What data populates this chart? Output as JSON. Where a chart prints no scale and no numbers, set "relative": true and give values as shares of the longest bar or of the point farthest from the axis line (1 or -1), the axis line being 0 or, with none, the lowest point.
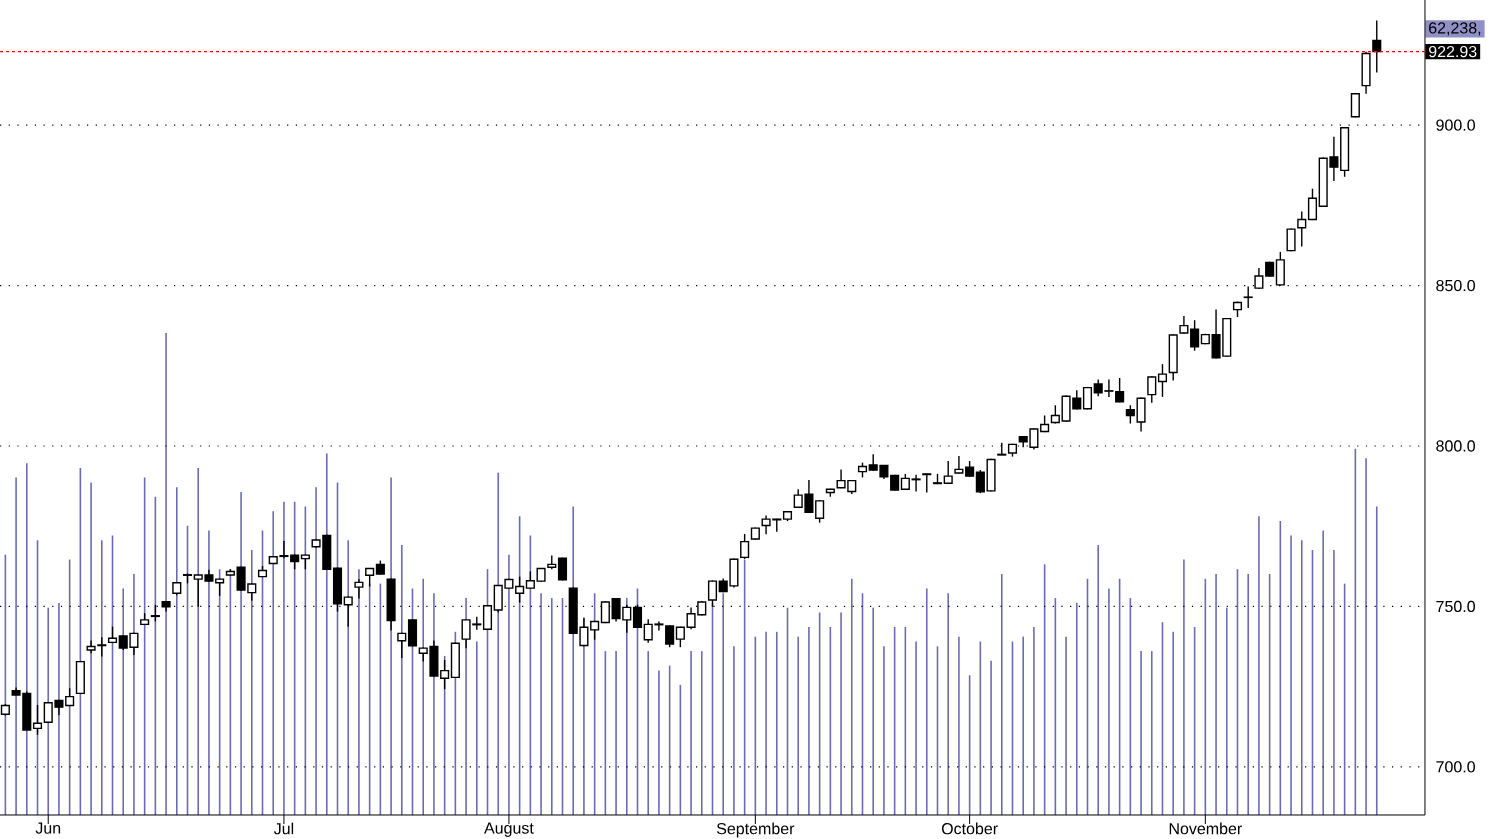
{
  "chart_data": [
    {
      "type": "candlestick",
      "categories": [
        null,
        null,
        null,
        null,
        "Jun",
        null,
        null,
        null,
        null,
        null,
        null,
        null,
        null,
        null,
        null,
        null,
        null,
        null,
        null,
        null,
        null,
        null,
        null,
        null,
        null,
        null,
        "Jul",
        null,
        null,
        null,
        null,
        null,
        null,
        null,
        null,
        null,
        null,
        null,
        null,
        null,
        null,
        null,
        null,
        null,
        null,
        null,
        null,
        "August",
        null,
        null,
        null,
        null,
        null,
        null,
        null,
        null,
        null,
        null,
        null,
        null,
        null,
        null,
        null,
        null,
        null,
        null,
        null,
        null,
        null,
        null,
        "September",
        null,
        null,
        null,
        null,
        null,
        null,
        null,
        null,
        null,
        null,
        null,
        null,
        null,
        null,
        null,
        null,
        null,
        null,
        null,
        "October",
        null,
        null,
        null,
        null,
        null,
        null,
        null,
        null,
        null,
        null,
        null,
        null,
        null,
        null,
        null,
        null,
        null,
        null,
        null,
        null,
        null,
        "November",
        null,
        null,
        null,
        null,
        null,
        null,
        null,
        null,
        null,
        null,
        null,
        null,
        null,
        null,
        null,
        null,
        null,
        null,
        null,
        null
      ],
      "ohlc": [
        [
          716.4,
          719.5,
          716.0,
          719.1
        ],
        [
          723.7,
          724.7,
          722.4,
          722.4
        ],
        [
          722.9,
          723.5,
          711.5,
          711.5
        ],
        [
          712.0,
          719.3,
          710.0,
          713.6
        ],
        [
          713.9,
          720.2,
          713.7,
          720.0
        ],
        [
          720.7,
          720.9,
          716.2,
          718.6
        ],
        [
          719.1,
          724.5,
          718.9,
          721.9
        ],
        [
          722.9,
          733.0,
          722.7,
          732.8
        ],
        [
          736.4,
          739.4,
          735.4,
          737.5
        ],
        [
          737.8,
          740.4,
          734.4,
          738.0
        ],
        [
          738.8,
          743.7,
          738.6,
          740.1
        ],
        [
          740.8,
          741.0,
          736.4,
          737.0
        ],
        [
          737.3,
          741.8,
          734.9,
          741.6
        ],
        [
          744.4,
          747.9,
          744.2,
          745.8
        ],
        [
          746.9,
          750.5,
          745.3,
          747.1
        ],
        [
          751.5,
          751.7,
          748.4,
          749.9
        ],
        [
          754.1,
          757.6,
          753.5,
          757.4
        ],
        [
          759.7,
          760.3,
          757.2,
          759.9
        ],
        [
          758.5,
          759.9,
          749.9,
          759.8
        ],
        [
          759.8,
          761.4,
          757.6,
          757.9
        ],
        [
          757.4,
          758.7,
          753.3,
          758.5
        ],
        [
          759.8,
          761.6,
          759.6,
          760.9
        ],
        [
          762.2,
          762.4,
          754.9,
          755.1
        ],
        [
          754.3,
          757.2,
          751.8,
          757.0
        ],
        [
          759.3,
          762.6,
          759.1,
          761.2
        ],
        [
          763.4,
          765.7,
          763.2,
          765.5
        ],
        [
          765.6,
          770.4,
          765.0,
          765.8
        ],
        [
          766.0,
          766.2,
          761.6,
          764.0
        ],
        [
          764.9,
          766.2,
          761.6,
          766.0
        ],
        [
          768.6,
          770.9,
          768.4,
          770.7
        ],
        [
          772.1,
          772.3,
          761.4,
          761.6
        ],
        [
          761.9,
          762.1,
          748.4,
          750.8
        ],
        [
          750.5,
          753.1,
          743.7,
          752.9
        ],
        [
          756.0,
          758.5,
          752.5,
          757.5
        ],
        [
          759.7,
          762.0,
          756.2,
          761.8
        ],
        [
          763.1,
          764.3,
          759.9,
          760.1
        ],
        [
          758.5,
          758.7,
          742.5,
          745.6
        ],
        [
          739.3,
          741.8,
          733.9,
          741.6
        ],
        [
          745.8,
          746.0,
          737.5,
          737.7
        ],
        [
          735.4,
          737.2,
          732.8,
          737.0
        ],
        [
          737.5,
          739.4,
          728.1,
          728.3
        ],
        [
          727.6,
          733.3,
          724.2,
          730.0
        ],
        [
          727.9,
          738.7,
          727.7,
          738.5
        ],
        [
          739.8,
          746.0,
          737.0,
          745.8
        ],
        [
          744.3,
          746.8,
          742.7,
          744.5
        ],
        [
          742.9,
          750.4,
          742.7,
          750.2
        ],
        [
          748.9,
          756.7,
          748.1,
          756.5
        ],
        [
          755.7,
          758.6,
          755.5,
          758.4
        ],
        [
          754.1,
          759.3,
          751.2,
          756.2
        ],
        [
          755.7,
          760.9,
          755.5,
          758.0
        ],
        [
          757.9,
          762.0,
          757.7,
          761.8
        ],
        [
          762.2,
          765.9,
          761.6,
          763.1
        ],
        [
          765.0,
          765.2,
          758.1,
          758.3
        ],
        [
          755.7,
          755.9,
          741.4,
          741.6
        ],
        [
          737.8,
          746.3,
          737.6,
          743.5
        ],
        [
          742.7,
          745.5,
          739.6,
          745.3
        ],
        [
          745.0,
          751.6,
          744.8,
          751.4
        ],
        [
          752.4,
          752.6,
          745.3,
          746.2
        ],
        [
          745.8,
          750.5,
          741.8,
          749.7
        ],
        [
          749.7,
          750.5,
          743.3,
          743.5
        ],
        [
          739.6,
          746.0,
          738.7,
          744.4
        ],
        [
          744.3,
          745.3,
          742.5,
          744.5
        ],
        [
          743.9,
          744.1,
          737.3,
          738.3
        ],
        [
          739.8,
          743.7,
          737.3,
          743.5
        ],
        [
          743.5,
          749.7,
          742.9,
          747.7
        ],
        [
          747.4,
          751.6,
          747.2,
          751.4
        ],
        [
          752.0,
          758.1,
          749.9,
          757.9
        ],
        [
          757.9,
          758.7,
          754.4,
          754.6
        ],
        [
          756.4,
          764.9,
          755.9,
          764.7
        ],
        [
          765.3,
          772.6,
          764.8,
          770.2
        ],
        [
          771.0,
          774.6,
          770.8,
          774.4
        ],
        [
          775.2,
          778.3,
          772.5,
          777.2
        ],
        [
          777.0,
          777.3,
          773.3,
          777.2
        ],
        [
          777.2,
          779.7,
          776.6,
          779.5
        ],
        [
          780.9,
          786.5,
          780.7,
          784.7
        ],
        [
          785.0,
          789.4,
          779.1,
          779.3
        ],
        [
          777.5,
          783.1,
          776.1,
          782.9
        ],
        [
          785.5,
          786.7,
          784.2,
          786.5
        ],
        [
          787.0,
          792.7,
          786.8,
          789.2
        ],
        [
          785.8,
          789.4,
          785.0,
          789.2
        ],
        [
          792.0,
          794.8,
          790.2,
          793.6
        ],
        [
          794.1,
          797.4,
          792.3,
          792.5
        ],
        [
          793.9,
          794.1,
          789.7,
          790.4
        ],
        [
          790.8,
          791.0,
          786.1,
          786.3
        ],
        [
          786.5,
          791.3,
          786.3,
          789.9
        ],
        [
          789.5,
          791.0,
          785.8,
          789.7
        ],
        [
          791.1,
          791.4,
          785.5,
          791.3
        ],
        [
          788.5,
          791.3,
          788.1,
          788.3
        ],
        [
          788.4,
          795.3,
          788.2,
          790.6
        ],
        [
          791.6,
          796.9,
          791.4,
          792.7
        ],
        [
          793.4,
          795.3,
          790.4,
          790.6
        ],
        [
          791.8,
          792.5,
          785.3,
          785.7
        ],
        [
          786.0,
          796.0,
          785.8,
          795.8
        ],
        [
          797.4,
          801.0,
          797.1,
          797.2
        ],
        [
          797.8,
          800.7,
          796.7,
          800.5
        ],
        [
          802.9,
          803.1,
          799.6,
          801.3
        ],
        [
          799.6,
          805.5,
          798.9,
          805.3
        ],
        [
          804.5,
          809.5,
          804.3,
          806.7
        ],
        [
          807.3,
          812.7,
          807.0,
          809.5
        ],
        [
          807.8,
          815.7,
          807.6,
          815.5
        ],
        [
          814.9,
          817.4,
          811.4,
          811.6
        ],
        [
          811.6,
          818.4,
          811.4,
          818.2
        ],
        [
          819.3,
          820.7,
          815.5,
          816.6
        ],
        [
          817.1,
          820.7,
          815.3,
          817.2
        ],
        [
          816.9,
          821.2,
          813.6,
          813.8
        ],
        [
          811.3,
          812.7,
          807.0,
          809.5
        ],
        [
          807.5,
          815.1,
          804.5,
          814.9
        ],
        [
          816.0,
          821.7,
          813.5,
          821.5
        ],
        [
          820.1,
          825.5,
          815.3,
          822.4
        ],
        [
          822.9,
          834.8,
          820.4,
          834.6
        ],
        [
          835.2,
          840.5,
          835.0,
          837.5
        ],
        [
          836.4,
          839.2,
          829.7,
          830.9
        ],
        [
          831.9,
          835.0,
          831.7,
          834.7
        ],
        [
          834.7,
          842.5,
          827.3,
          827.5
        ],
        [
          828.0,
          839.9,
          827.8,
          839.7
        ],
        [
          842.5,
          845.0,
          840.2,
          844.7
        ],
        [
          846.3,
          849.7,
          843.0,
          846.4
        ],
        [
          849.2,
          855.5,
          848.9,
          853.0
        ],
        [
          857.2,
          857.4,
          852.8,
          853.0
        ],
        [
          850.2,
          860.5,
          850.0,
          858.0
        ],
        [
          860.9,
          867.8,
          860.7,
          867.6
        ],
        [
          868.0,
          873.1,
          862.2,
          870.6
        ],
        [
          870.6,
          880.2,
          870.4,
          877.2
        ],
        [
          874.7,
          889.9,
          874.5,
          889.7
        ],
        [
          890.1,
          896.4,
          882.6,
          886.9
        ],
        [
          885.9,
          899.4,
          883.9,
          899.2
        ],
        [
          902.6,
          910.0,
          902.4,
          909.8
        ],
        [
          912.3,
          922.9,
          909.8,
          922.3
        ],
        [
          926.4,
          932.6,
          916.4,
          922.93
        ],
        null,
        null,
        null,
        null
      ],
      "ylim": [
        685,
        939
      ],
      "yticks": [
        {
          "value": 700,
          "label": "700.0"
        },
        {
          "value": 750,
          "label": "750.0"
        },
        {
          "value": 800,
          "label": "800.0"
        },
        {
          "value": 850,
          "label": "850.0"
        },
        {
          "value": 900,
          "label": "900.0"
        }
      ],
      "grid": "y",
      "ref_lines": [
        {
          "axis": "y",
          "value": 922.93,
          "label": "922.93",
          "color": "#ff0000",
          "line_style": "dashed"
        }
      ]
    },
    {
      "type": "bar",
      "relative": true,
      "color": "#6b6bb5",
      "categories": [
        null,
        null,
        null,
        null,
        null,
        null,
        null,
        null,
        null,
        null,
        null,
        null,
        null,
        null,
        null,
        null,
        null,
        null,
        null,
        null,
        null,
        null,
        null,
        null,
        null,
        null,
        null,
        null,
        null,
        null,
        null,
        null,
        null,
        null,
        null,
        null,
        null,
        null,
        null,
        null,
        null,
        null,
        null,
        null,
        null,
        null,
        null,
        null,
        null,
        null,
        null,
        null,
        null,
        null,
        null,
        null,
        null,
        null,
        null,
        null,
        null,
        null,
        null,
        null,
        null,
        null,
        null,
        null,
        null,
        null,
        null,
        null,
        null,
        null,
        null,
        null,
        null,
        null,
        null,
        null,
        null,
        null,
        null,
        null,
        null,
        null,
        null,
        null,
        null,
        null,
        null,
        null,
        null,
        null,
        null,
        null,
        null,
        null,
        null,
        null,
        null,
        null,
        null,
        null,
        null,
        null,
        null,
        null,
        null,
        null,
        null,
        null,
        null,
        null,
        null,
        null,
        null,
        null,
        null,
        null,
        null,
        null,
        null,
        null,
        null,
        null,
        null,
        null,
        null,
        null,
        null,
        null,
        null
      ],
      "values": [
        0.54,
        0.7,
        0.73,
        0.57,
        0.43,
        0.44,
        0.53,
        0.72,
        0.69,
        0.57,
        0.58,
        0.47,
        0.5,
        0.7,
        0.66,
        1,
        0.68,
        0.6,
        0.72,
        0.59,
        0.51,
        0.51,
        0.67,
        0.55,
        0.59,
        0.63,
        0.65,
        0.65,
        0.64,
        0.68,
        0.75,
        0.69,
        0.57,
        0.51,
        0.48,
        0.48,
        0.7,
        0.56,
        0.47,
        0.49,
        0.46,
        0.33,
        0.38,
        0.45,
        0.36,
        0.51,
        0.71,
        0.54,
        0.62,
        0.58,
        0.46,
        0.45,
        0.45,
        0.64,
        0.41,
        0.46,
        0.34,
        0.34,
        0.45,
        0.47,
        0.34,
        0.3,
        0.31,
        0.27,
        0.34,
        0.34,
        0.44,
        0.46,
        0.35,
        0.53,
        0.37,
        0.38,
        0.38,
        0.43,
        0.37,
        0.39,
        0.42,
        0.39,
        0.42,
        0.49,
        0.46,
        0.43,
        0.35,
        0.39,
        0.39,
        0.36,
        0.47,
        0.35,
        0.46,
        0.37,
        0.29,
        0.36,
        0.32,
        0.5,
        0.36,
        0.37,
        0.39,
        0.52,
        0.45,
        0.37,
        0.44,
        0.49,
        0.56,
        0.47,
        0.49,
        0.45,
        0.34,
        0.34,
        0.4,
        0.38,
        0.53,
        0.39,
        0.49,
        0.5,
        0.43,
        0.51,
        0.5,
        0.62,
        0.5,
        0.61,
        0.58,
        0.57,
        0.55,
        0.59,
        0.55,
        0.48,
        0.76,
        0.74,
        0.64,
        null,
        null,
        null,
        null
      ],
      "annotations": [
        "62,238,"
      ]
    }
  ]
}
